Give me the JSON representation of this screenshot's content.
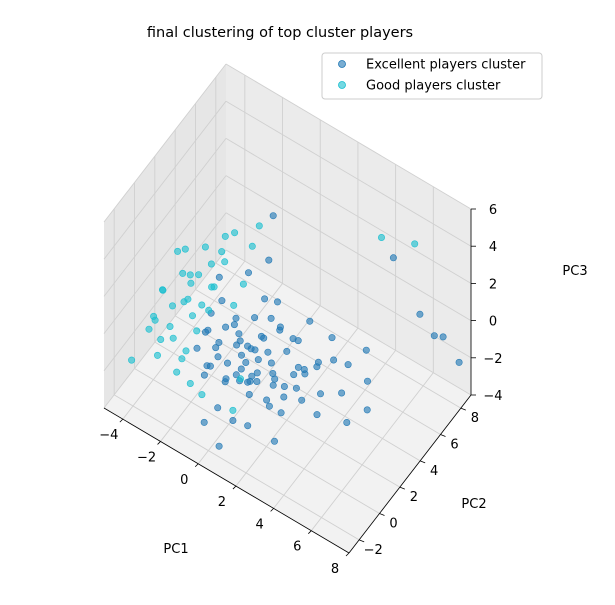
{
  "chart_data": {
    "type": "scatter",
    "title": "final clustering of top cluster players",
    "xlabel": "PC1",
    "ylabel": "PC2",
    "zlabel": "PC3",
    "xlim": [
      -5,
      8
    ],
    "ylim": [
      -3,
      9
    ],
    "zlim": [
      -4,
      6
    ],
    "xticks": [
      -4,
      -2,
      0,
      2,
      4,
      6,
      8
    ],
    "yticks": [
      -2,
      0,
      2,
      4,
      6,
      8
    ],
    "zticks": [
      -4,
      -2,
      0,
      2,
      4,
      6
    ],
    "grid": true,
    "legend_position": "top-right",
    "series": [
      {
        "name": "Excellent players cluster",
        "color": "#1f77b4",
        "points": [
          [
            0.5,
            -1.2,
            -0.4
          ],
          [
            1.1,
            -0.8,
            0.2
          ],
          [
            -0.3,
            -0.5,
            -0.2
          ],
          [
            1.6,
            -0.2,
            -0.6
          ],
          [
            0.2,
            0.4,
            0.1
          ],
          [
            2.2,
            0.3,
            -0.8
          ],
          [
            0.8,
            1.1,
            -0.3
          ],
          [
            -0.6,
            0.8,
            0.3
          ],
          [
            1.4,
            1.6,
            -1.0
          ],
          [
            2.8,
            1.2,
            -0.5
          ],
          [
            0.0,
            -1.8,
            0.4
          ],
          [
            1.9,
            -1.5,
            -0.2
          ],
          [
            3.1,
            -0.6,
            -1.1
          ],
          [
            -1.0,
            -0.2,
            0.6
          ],
          [
            0.6,
            2.1,
            -0.4
          ],
          [
            2.4,
            2.4,
            -1.2
          ],
          [
            1.0,
            0.0,
            0.8
          ],
          [
            3.6,
            0.5,
            -0.9
          ],
          [
            -0.2,
            1.5,
            -0.7
          ],
          [
            1.7,
            0.7,
            0.4
          ],
          [
            2.0,
            -0.9,
            0.6
          ],
          [
            0.3,
            -0.9,
            -0.9
          ],
          [
            1.2,
            2.8,
            -0.2
          ],
          [
            3.9,
            1.8,
            -1.3
          ],
          [
            -0.8,
            0.2,
            -0.5
          ],
          [
            0.9,
            0.6,
            -1.3
          ],
          [
            2.6,
            -0.3,
            0.2
          ],
          [
            1.5,
            -1.1,
            1.0
          ],
          [
            -0.4,
            -1.4,
            -0.1
          ],
          [
            0.4,
            1.8,
            0.7
          ],
          [
            3.3,
            2.7,
            -0.6
          ],
          [
            4.2,
            0.9,
            -1.6
          ],
          [
            2.9,
            3.3,
            -1.5
          ],
          [
            1.8,
            3.5,
            -0.9
          ],
          [
            4.8,
            2.2,
            -1.0
          ],
          [
            5.4,
            1.6,
            -1.8
          ],
          [
            4.5,
            3.4,
            -0.5
          ],
          [
            6.0,
            2.5,
            -1.4
          ],
          [
            5.1,
            4.2,
            -1.6
          ],
          [
            3.0,
            4.6,
            -0.8
          ],
          [
            0.6,
            -2.2,
            -1.2
          ],
          [
            1.3,
            -2.0,
            -1.6
          ],
          [
            2.3,
            -2.4,
            -1.0
          ],
          [
            0.1,
            -2.6,
            -2.0
          ],
          [
            1.0,
            -2.8,
            -2.6
          ],
          [
            -0.9,
            1.0,
            1.4
          ],
          [
            -0.3,
            2.5,
            2.2
          ],
          [
            0.4,
            3.2,
            2.8
          ],
          [
            1.6,
            1.2,
            1.8
          ],
          [
            2.1,
            0.9,
            3.2
          ],
          [
            -0.5,
            0.0,
            3.6
          ],
          [
            0.2,
            4.0,
            4.5
          ],
          [
            5.5,
            6.0,
            4.0
          ],
          [
            6.8,
            6.2,
            1.6
          ],
          [
            7.4,
            6.5,
            0.6
          ],
          [
            7.6,
            7.0,
            0.3
          ],
          [
            7.8,
            8.2,
            -1.8
          ],
          [
            4.6,
            5.0,
            -0.8
          ],
          [
            3.4,
            -1.8,
            -1.6
          ],
          [
            2.7,
            -1.0,
            -0.7
          ],
          [
            -1.2,
            -0.9,
            0.0
          ],
          [
            -1.5,
            0.5,
            -0.3
          ],
          [
            -0.1,
            0.9,
            1.0
          ],
          [
            0.7,
            -0.3,
            1.5
          ],
          [
            1.9,
            0.2,
            -1.7
          ],
          [
            1.1,
            1.4,
            0.3
          ],
          [
            2.5,
            1.7,
            0.9
          ],
          [
            0.0,
            2.2,
            -1.5
          ],
          [
            -0.7,
            -1.1,
            -1.0
          ],
          [
            3.7,
            -0.2,
            0.3
          ],
          [
            2.0,
            2.0,
            -0.3
          ],
          [
            1.4,
            -0.5,
            -0.5
          ],
          [
            0.3,
            0.7,
            -0.6
          ],
          [
            -0.4,
            1.3,
            0.2
          ],
          [
            1.7,
            -1.3,
            0.2
          ],
          [
            2.9,
            0.1,
            -0.3
          ],
          [
            0.8,
            -1.6,
            0.9
          ],
          [
            3.5,
            1.0,
            0.1
          ],
          [
            -1.1,
            0.3,
            1.1
          ],
          [
            0.5,
            2.6,
            1.2
          ],
          [
            4.0,
            2.9,
            -0.2
          ],
          [
            2.2,
            3.9,
            0.1
          ],
          [
            1.3,
            0.5,
            -0.1
          ],
          [
            0.9,
            -0.6,
            -0.7
          ],
          [
            1.8,
            1.0,
            -0.9
          ],
          [
            2.6,
            0.6,
            -1.4
          ],
          [
            -0.2,
            -0.6,
            0.7
          ],
          [
            0.4,
            0.0,
            -1.1
          ],
          [
            1.5,
            2.3,
            0.5
          ],
          [
            3.2,
            1.5,
            -0.2
          ]
        ]
      },
      {
        "name": "Good players cluster",
        "color": "#17becf",
        "points": [
          [
            -2.6,
            0.8,
            0.6
          ],
          [
            -3.2,
            1.4,
            1.2
          ],
          [
            -2.0,
            2.0,
            2.0
          ],
          [
            -1.8,
            3.0,
            2.9
          ],
          [
            -2.9,
            -0.4,
            -0.2
          ],
          [
            -3.6,
            0.2,
            0.9
          ],
          [
            -2.3,
            -1.2,
            0.1
          ],
          [
            -1.5,
            1.1,
            1.7
          ],
          [
            -3.0,
            2.6,
            0.4
          ],
          [
            -2.1,
            3.5,
            1.0
          ],
          [
            -1.2,
            2.8,
            3.6
          ],
          [
            -0.8,
            3.8,
            2.4
          ],
          [
            -3.8,
            -0.8,
            -0.6
          ],
          [
            -4.0,
            0.9,
            0.2
          ],
          [
            -2.7,
            -2.0,
            -0.5
          ],
          [
            -1.6,
            -0.6,
            1.3
          ],
          [
            -2.4,
            1.8,
            -0.3
          ],
          [
            -3.4,
            1.9,
            -0.8
          ],
          [
            -1.9,
            -1.6,
            -1.2
          ],
          [
            -2.2,
            0.3,
            2.5
          ],
          [
            -1.1,
            0.6,
            2.3
          ],
          [
            -3.1,
            -1.5,
            0.8
          ],
          [
            -0.9,
            -0.3,
            1.8
          ],
          [
            -2.8,
            2.9,
            1.8
          ],
          [
            -1.4,
            1.9,
            3.1
          ],
          [
            -0.7,
            4.3,
            3.2
          ],
          [
            -1.3,
            -2.2,
            0.3
          ],
          [
            -2.5,
            -0.9,
            1.5
          ],
          [
            -3.5,
            -0.2,
            -1.4
          ],
          [
            -4.2,
            0.4,
            -1.0
          ],
          [
            -1.7,
            0.0,
            0.0
          ],
          [
            -0.6,
            1.6,
            0.9
          ],
          [
            -2.0,
            -0.5,
            -0.9
          ],
          [
            0.3,
            0.6,
            -1.8
          ],
          [
            -0.4,
            -1.9,
            -1.3
          ],
          [
            -2.9,
            1.1,
            2.9
          ],
          [
            -3.3,
            2.4,
            -0.1
          ],
          [
            -1.0,
            3.3,
            0.6
          ],
          [
            4.6,
            6.5,
            4.2
          ],
          [
            6.2,
            6.8,
            4.6
          ],
          [
            -4.4,
            -1.4,
            -2.2
          ],
          [
            -1.5,
            -1.0,
            -2.0
          ],
          [
            0.6,
            -0.7,
            -2.4
          ],
          [
            -3.9,
            2.2,
            1.4
          ]
        ]
      }
    ]
  }
}
